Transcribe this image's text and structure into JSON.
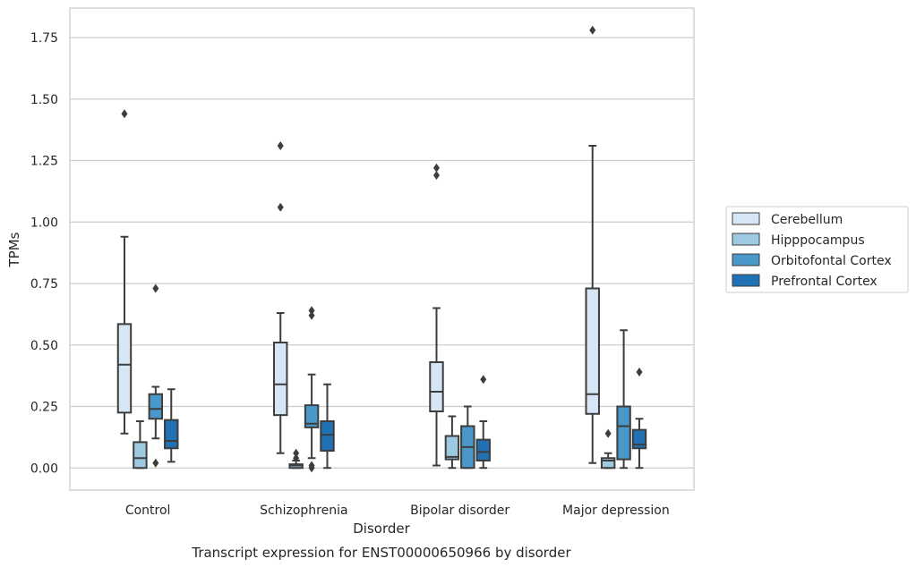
{
  "chart_data": {
    "type": "box",
    "xlabel": "Disorder",
    "ylabel": "TPMs",
    "caption": "Transcript expression for ENST00000650966 by disorder",
    "ylim": [
      -0.09,
      1.87
    ],
    "yticks": [
      "0.00",
      "0.25",
      "0.50",
      "0.75",
      "1.00",
      "1.25",
      "1.50",
      "1.75"
    ],
    "ytick_values": [
      0,
      0.25,
      0.5,
      0.75,
      1.0,
      1.25,
      1.5,
      1.75
    ],
    "grid": true,
    "legend_position": "right",
    "categories": [
      "Control",
      "Schizophrenia",
      "Bipolar disorder",
      "Major depression"
    ],
    "series": [
      {
        "name": "Cerebellum",
        "color": "#d6e6f4",
        "boxes": [
          {
            "whisker_low": 0.14,
            "q1": 0.225,
            "median": 0.42,
            "q3": 0.585,
            "whisker_high": 0.94,
            "outliers": [
              1.44
            ]
          },
          {
            "whisker_low": 0.06,
            "q1": 0.215,
            "median": 0.34,
            "q3": 0.51,
            "whisker_high": 0.63,
            "outliers": [
              1.06,
              1.31
            ]
          },
          {
            "whisker_low": 0.01,
            "q1": 0.23,
            "median": 0.31,
            "q3": 0.43,
            "whisker_high": 0.65,
            "outliers": [
              1.19,
              1.22
            ]
          },
          {
            "whisker_low": 0.02,
            "q1": 0.22,
            "median": 0.3,
            "q3": 0.73,
            "whisker_high": 1.31,
            "outliers": [
              1.78
            ]
          }
        ]
      },
      {
        "name": "Hipppocampus",
        "color": "#9ecae1",
        "boxes": [
          {
            "whisker_low": 0.0,
            "q1": 0.0,
            "median": 0.04,
            "q3": 0.105,
            "whisker_high": 0.19,
            "outliers": []
          },
          {
            "whisker_low": 0.0,
            "q1": 0.0,
            "median": 0.01,
            "q3": 0.015,
            "whisker_high": 0.03,
            "outliers": [
              0.06,
              0.04
            ]
          },
          {
            "whisker_low": 0.0,
            "q1": 0.035,
            "median": 0.045,
            "q3": 0.13,
            "whisker_high": 0.21,
            "outliers": []
          },
          {
            "whisker_low": 0.0,
            "q1": 0.0,
            "median": 0.03,
            "q3": 0.04,
            "whisker_high": 0.06,
            "outliers": [
              0.14
            ]
          }
        ]
      },
      {
        "name": "Orbitofontal Cortex",
        "color": "#4a98c9",
        "boxes": [
          {
            "whisker_low": 0.12,
            "q1": 0.2,
            "median": 0.24,
            "q3": 0.3,
            "whisker_high": 0.33,
            "outliers": [
              0.73,
              0.02
            ]
          },
          {
            "whisker_low": 0.04,
            "q1": 0.165,
            "median": 0.18,
            "q3": 0.255,
            "whisker_high": 0.38,
            "outliers": [
              0.64,
              0.62,
              0.01,
              0.0
            ]
          },
          {
            "whisker_low": 0.0,
            "q1": 0.0,
            "median": 0.085,
            "q3": 0.17,
            "whisker_high": 0.25,
            "outliers": []
          },
          {
            "whisker_low": 0.0,
            "q1": 0.035,
            "median": 0.17,
            "q3": 0.25,
            "whisker_high": 0.56,
            "outliers": []
          }
        ]
      },
      {
        "name": "Prefrontal Cortex",
        "color": "#2171b5",
        "boxes": [
          {
            "whisker_low": 0.025,
            "q1": 0.08,
            "median": 0.11,
            "q3": 0.195,
            "whisker_high": 0.32,
            "outliers": []
          },
          {
            "whisker_low": 0.0,
            "q1": 0.07,
            "median": 0.135,
            "q3": 0.19,
            "whisker_high": 0.34,
            "outliers": []
          },
          {
            "whisker_low": 0.0,
            "q1": 0.03,
            "median": 0.065,
            "q3": 0.115,
            "whisker_high": 0.19,
            "outliers": [
              0.36
            ]
          },
          {
            "whisker_low": 0.0,
            "q1": 0.08,
            "median": 0.095,
            "q3": 0.155,
            "whisker_high": 0.2,
            "outliers": [
              0.39
            ]
          }
        ]
      }
    ]
  }
}
